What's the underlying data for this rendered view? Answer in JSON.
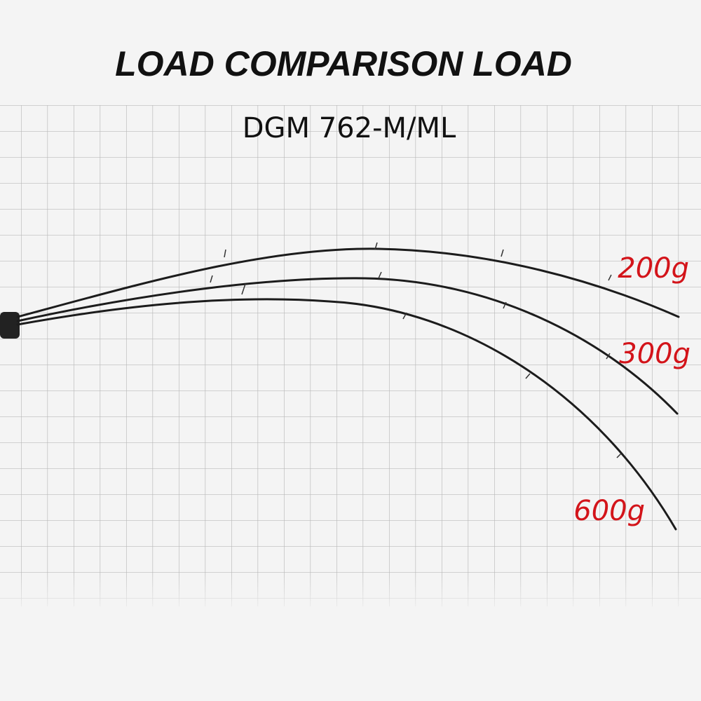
{
  "header": {
    "title": "LOAD COMPARISON LOAD",
    "subtitle": "DGM 762-M/ML"
  },
  "rods": [
    {
      "label": "200g"
    },
    {
      "label": "300g"
    },
    {
      "label": "600g"
    }
  ]
}
